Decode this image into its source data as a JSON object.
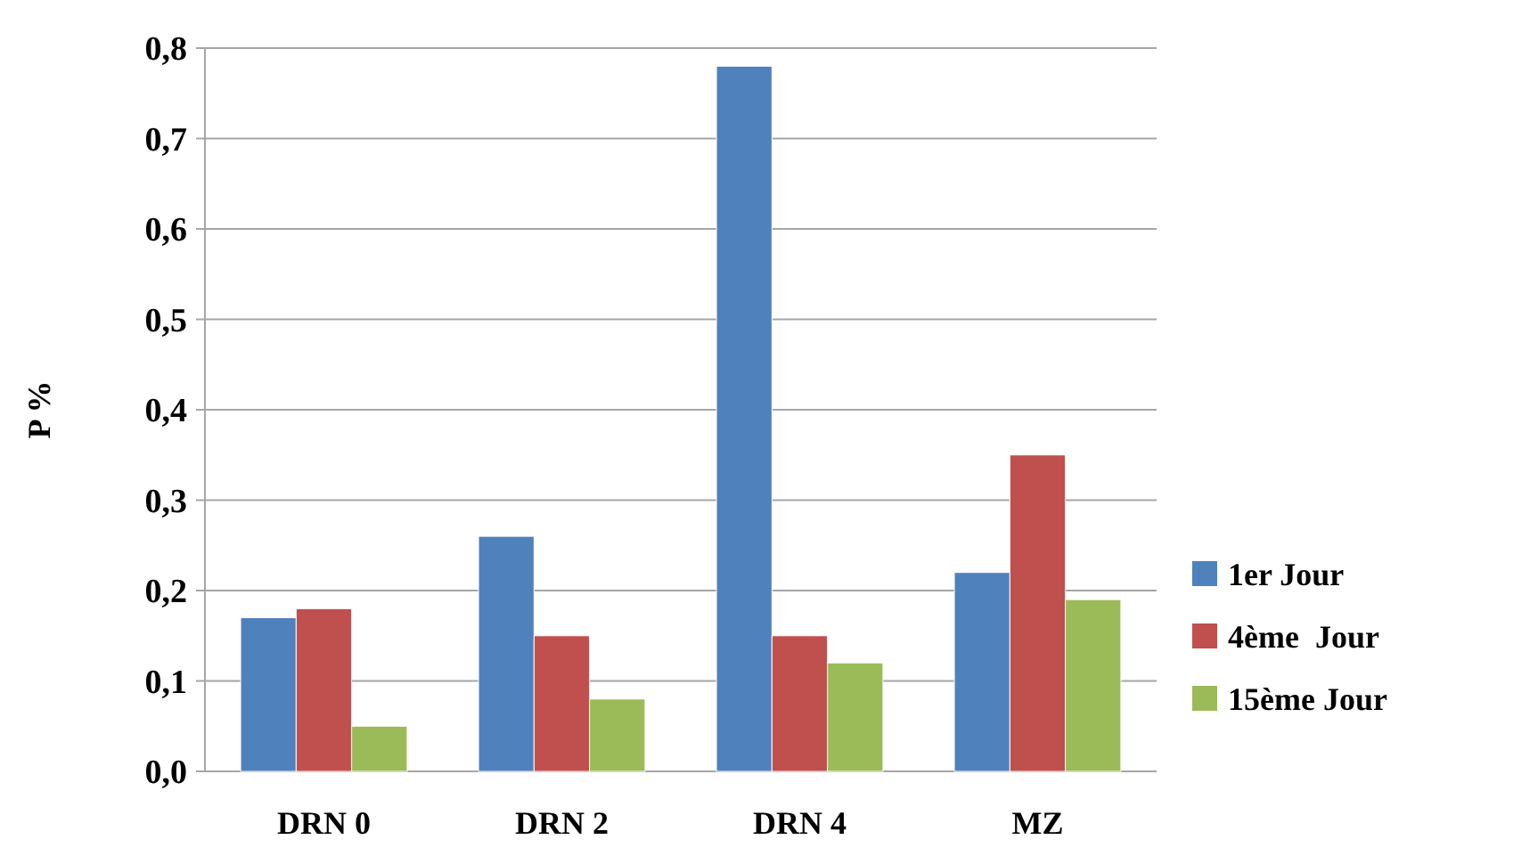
{
  "chart_data": {
    "type": "bar",
    "ylabel": "P %",
    "categories": [
      "DRN 0",
      "DRN 2",
      "DRN 4",
      "MZ"
    ],
    "series": [
      {
        "name": "1er Jour",
        "color": "#4f81bd",
        "values": [
          0.17,
          0.26,
          0.78,
          0.22
        ]
      },
      {
        "name": "4ème  Jour",
        "color": "#c0504d",
        "values": [
          0.18,
          0.15,
          0.15,
          0.35
        ]
      },
      {
        "name": "15ème Jour",
        "color": "#9bbb59",
        "values": [
          0.05,
          0.08,
          0.12,
          0.19
        ]
      }
    ],
    "ylim": [
      0,
      0.8
    ],
    "yticks": [
      {
        "value": 0,
        "label": "0,0"
      },
      {
        "value": 0.1,
        "label": "0,1"
      },
      {
        "value": 0.2,
        "label": "0,2"
      },
      {
        "value": 0.3,
        "label": "0,3"
      },
      {
        "value": 0.4,
        "label": "0,4"
      },
      {
        "value": 0.5,
        "label": "0,5"
      },
      {
        "value": 0.6,
        "label": "0,6"
      },
      {
        "value": 0.7,
        "label": "0,7"
      },
      {
        "value": 0.8,
        "label": "0,8"
      }
    ],
    "grid": "y",
    "legend": "right"
  }
}
